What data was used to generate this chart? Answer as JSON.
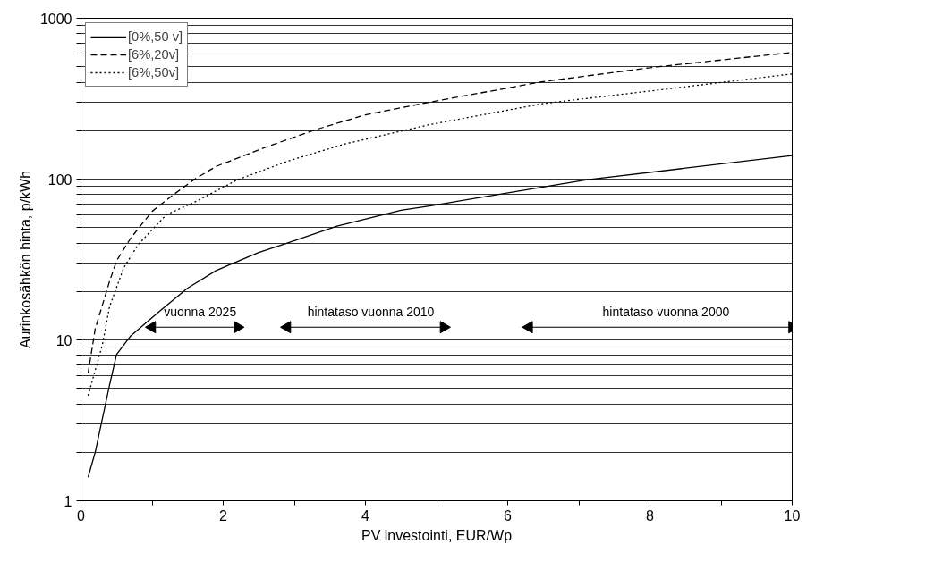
{
  "chart_data": {
    "type": "line",
    "xlabel": "PV investointi, EUR/Wp",
    "ylabel": "Aurinkosähkön hinta, p/kWh",
    "log": "y",
    "grid": "y",
    "legend": "top left",
    "xlim": [
      0,
      10
    ],
    "ylim": [
      1,
      1000
    ],
    "xticks": [
      0,
      {
        "value": 1,
        "label": null
      },
      2,
      {
        "value": 3,
        "label": null
      },
      4,
      {
        "value": 5,
        "label": null
      },
      6,
      {
        "value": 7,
        "label": null
      },
      8,
      {
        "value": 9,
        "label": null
      },
      10
    ],
    "yticks": [
      1,
      {
        "value": 2,
        "label": null
      },
      {
        "value": 3,
        "label": null
      },
      {
        "value": 4,
        "label": null
      },
      {
        "value": 5,
        "label": null
      },
      {
        "value": 6,
        "label": null
      },
      {
        "value": 7,
        "label": null
      },
      {
        "value": 8,
        "label": null
      },
      {
        "value": 9,
        "label": null
      },
      10,
      {
        "value": 20,
        "label": null
      },
      {
        "value": 30,
        "label": null
      },
      {
        "value": 40,
        "label": null
      },
      {
        "value": 50,
        "label": null
      },
      {
        "value": 60,
        "label": null
      },
      {
        "value": 70,
        "label": null
      },
      {
        "value": 80,
        "label": null
      },
      {
        "value": 90,
        "label": null
      },
      100,
      {
        "value": 200,
        "label": null
      },
      {
        "value": 300,
        "label": null
      },
      {
        "value": 400,
        "label": null
      },
      {
        "value": 500,
        "label": null
      },
      {
        "value": 600,
        "label": null
      },
      {
        "value": 700,
        "label": null
      },
      {
        "value": 800,
        "label": null
      },
      {
        "value": 900,
        "label": null
      },
      1000
    ],
    "series": [
      {
        "name": "[0%,50 v]",
        "color": "#000000",
        "line_style": "solid",
        "x": [
          0.1,
          0.2,
          0.4,
          0.5,
          0.7,
          1.1,
          1.5,
          1.9,
          2.5,
          2.9,
          3.6,
          4.5,
          4.9,
          7.1,
          10
        ],
        "values": [
          1.4,
          2.0,
          5.2,
          8.1,
          10.6,
          15,
          21,
          27,
          35,
          40,
          51,
          64,
          68,
          99,
          140
        ]
      },
      {
        "name": "[6%,20v]",
        "color": "#000000",
        "line_style": "dashed",
        "x": [
          0.1,
          0.2,
          0.4,
          0.5,
          0.7,
          1.0,
          1.3,
          1.6,
          1.9,
          2.6,
          3.3,
          4.0,
          4.9,
          6.5,
          8.1,
          10
        ],
        "values": [
          6.2,
          11.7,
          23,
          31,
          43,
          63,
          80,
          100,
          120,
          158,
          203,
          251,
          301,
          404,
          499,
          613
        ]
      },
      {
        "name": "[6%,50v]",
        "color": "#000000",
        "line_style": "dotted",
        "x": [
          0.1,
          0.3,
          0.4,
          0.6,
          0.8,
          1.2,
          1.6,
          2.2,
          2.9,
          3.7,
          4.9,
          6.5,
          8.3,
          10
        ],
        "values": [
          4.5,
          9.3,
          16,
          28,
          39,
          60,
          72,
          99,
          129,
          165,
          218,
          295,
          366,
          451
        ]
      },
      {
        "marker": "triangle",
        "name": "vuonna 2025",
        "color": "#000000",
        "line_style": "solid",
        "x": [
          1.0,
          2.2
        ],
        "values": [
          12,
          12
        ]
      },
      {
        "marker": "triangle",
        "name": "hintataso vuonna 2010",
        "color": "#000000",
        "line_style": "solid",
        "x": [
          2.9,
          5.1
        ],
        "values": [
          12,
          12
        ]
      },
      {
        "marker": "triangle",
        "name": "hintataso vuonna 2000",
        "color": "#000000",
        "line_style": "solid",
        "x": [
          6.3,
          10
        ],
        "values": [
          12,
          12
        ]
      }
    ]
  }
}
